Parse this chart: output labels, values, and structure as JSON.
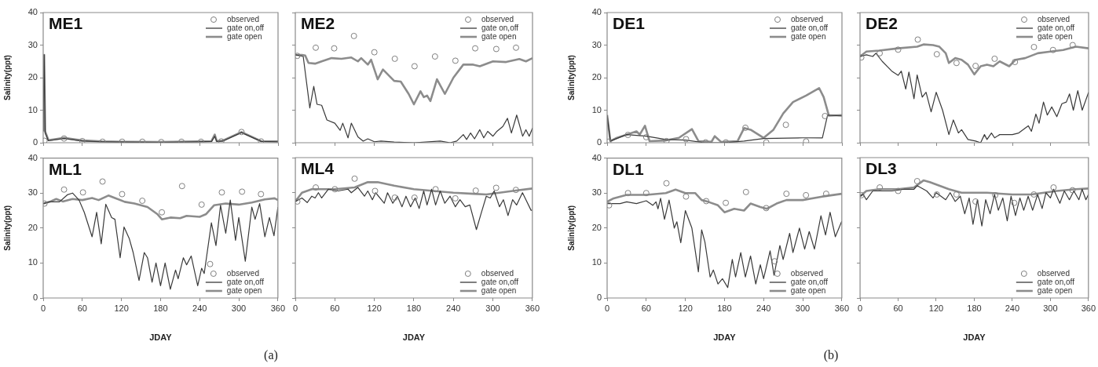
{
  "chart_data": [
    {
      "type": "line",
      "title": "ME1",
      "ylabel": "Salinity(ppt)",
      "xlim": [
        0,
        360
      ],
      "xticks": [
        0,
        60,
        120,
        180,
        240,
        300,
        360
      ],
      "ylim": [
        0,
        40
      ],
      "yticks": [
        0,
        10,
        20,
        30,
        40
      ],
      "tick_labels": "y",
      "legend": "top right",
      "series": [
        {
          "name": "observed",
          "type": "scatter",
          "marker": "circle",
          "color": "#808080",
          "x": [
            2,
            32,
            60,
            91,
            121,
            152,
            181,
            212,
            242,
            273,
            304,
            334
          ],
          "values": [
            0.6,
            1.3,
            0.5,
            0.3,
            0.3,
            0.3,
            0.2,
            0.3,
            0.3,
            0.4,
            3.3,
            0.4
          ]
        },
        {
          "name": "gate on,off",
          "type": "line",
          "marker": "none",
          "color": "#3a3a3a",
          "x": [
            0,
            1.5,
            3,
            8,
            32,
            60,
            90,
            120,
            180,
            240,
            258,
            263,
            266,
            275,
            304,
            334,
            360
          ],
          "values": [
            3.5,
            27,
            3,
            0.6,
            1.3,
            0.5,
            0.3,
            0.2,
            0.1,
            0.3,
            0.4,
            2,
            0.4,
            0.5,
            3.1,
            0.4,
            0.3
          ]
        },
        {
          "name": "gate open",
          "type": "line",
          "marker": "none",
          "color": "#8c8c8c",
          "x": [
            0,
            1.5,
            3,
            8,
            32,
            60,
            90,
            120,
            180,
            240,
            258,
            263,
            266,
            275,
            304,
            334,
            360
          ],
          "values": [
            3.5,
            27,
            3.5,
            0.8,
            1.5,
            0.7,
            0.4,
            0.3,
            0.2,
            0.4,
            0.5,
            2.5,
            0.5,
            0.6,
            3.3,
            0.5,
            0.4
          ]
        }
      ]
    },
    {
      "type": "line",
      "title": "ME2",
      "xlim": [
        0,
        360
      ],
      "xticks": [
        0,
        60,
        120,
        180,
        240,
        300,
        360
      ],
      "ylim": [
        0,
        40
      ],
      "yticks": [
        0,
        10,
        20,
        30,
        40
      ],
      "tick_labels": false,
      "legend": "top right",
      "series": [
        {
          "name": "observed",
          "type": "scatter",
          "marker": "circle",
          "color": "#808080",
          "x": [
            3,
            31,
            59,
            89,
            120,
            151,
            181,
            212,
            243,
            273,
            305,
            335
          ],
          "values": [
            26.7,
            29.2,
            29,
            32.8,
            27.8,
            25.8,
            23.5,
            26.5,
            25.2,
            29,
            28.8,
            29.2
          ]
        },
        {
          "name": "gate on,off",
          "type": "line",
          "marker": "none",
          "color": "#3a3a3a",
          "x": [
            0,
            12,
            22,
            28,
            33,
            40,
            48,
            60,
            68,
            72,
            80,
            85,
            95,
            103,
            110,
            120,
            130,
            150,
            180,
            220,
            235,
            245,
            255,
            260,
            266,
            272,
            280,
            286,
            292,
            300,
            306,
            315,
            322,
            328,
            336,
            345,
            350,
            355,
            360
          ],
          "values": [
            27,
            26.5,
            10.7,
            17.3,
            11.8,
            11.5,
            7,
            6,
            3.8,
            6,
            1.5,
            6,
            1.8,
            0.5,
            1.2,
            0.3,
            0.5,
            0.2,
            0,
            0.5,
            0,
            0.5,
            2.5,
            1,
            3,
            1.2,
            4,
            1.5,
            3.5,
            2,
            3.5,
            5,
            7.5,
            3,
            8.5,
            2,
            4,
            2,
            4.5
          ]
        },
        {
          "name": "gate open",
          "type": "line",
          "marker": "none",
          "color": "#8c8c8c",
          "x": [
            0,
            10,
            15,
            20,
            30,
            40,
            55,
            70,
            85,
            95,
            100,
            110,
            115,
            125,
            133,
            150,
            160,
            172,
            180,
            190,
            195,
            200,
            205,
            215,
            227,
            240,
            255,
            270,
            280,
            300,
            320,
            340,
            350,
            360
          ],
          "values": [
            27,
            27,
            26.8,
            24.5,
            24.3,
            25,
            26,
            25.8,
            26.2,
            25,
            26,
            24,
            25.5,
            19.5,
            22.5,
            19,
            18.8,
            15,
            11.8,
            15.8,
            14,
            14.5,
            12.8,
            19.5,
            15,
            20,
            24,
            24,
            23.5,
            25,
            24.8,
            25.7,
            25,
            26
          ]
        }
      ]
    },
    {
      "type": "line",
      "title": "ML1",
      "xlabel": "JDAY",
      "ylabel": "Salinity(ppt)",
      "xlim": [
        0,
        360
      ],
      "xticks": [
        0,
        60,
        120,
        180,
        240,
        300,
        360
      ],
      "ylim": [
        0,
        40
      ],
      "yticks": [
        0,
        10,
        20,
        30,
        40
      ],
      "legend": "bottom right",
      "annotations": [
        "(a)"
      ],
      "series": [
        {
          "name": "observed",
          "type": "scatter",
          "marker": "circle",
          "color": "#808080",
          "x": [
            2,
            32,
            61,
            91,
            121,
            152,
            182,
            213,
            243,
            256,
            274,
            305,
            334
          ],
          "values": [
            27,
            31,
            30.2,
            33.3,
            29.7,
            27.8,
            24.5,
            32,
            26.7,
            9.7,
            30.2,
            30.4,
            29.7
          ]
        },
        {
          "name": "gate on,off",
          "type": "line",
          "marker": "none",
          "color": "#3a3a3a",
          "x": [
            0,
            10,
            25,
            37,
            45,
            55,
            63,
            75,
            82,
            89,
            96,
            105,
            110,
            118,
            124,
            132,
            138,
            147,
            155,
            160,
            167,
            173,
            180,
            187,
            195,
            203,
            207,
            215,
            220,
            227,
            237,
            243,
            247,
            258,
            265,
            272,
            280,
            287,
            295,
            300,
            310,
            320,
            325,
            332,
            340,
            347,
            354,
            360
          ],
          "values": [
            27,
            27.5,
            27.5,
            29.5,
            30,
            28,
            24.5,
            17.5,
            24.5,
            15.5,
            26.8,
            23,
            22.5,
            11.5,
            20.3,
            17,
            13,
            5,
            13,
            11.5,
            4.5,
            10,
            3.5,
            10,
            2.5,
            8,
            5.5,
            11.5,
            9.5,
            12,
            3.5,
            8.5,
            7,
            21.5,
            15,
            26.5,
            18.5,
            28,
            16.5,
            23,
            10.5,
            26,
            22.5,
            27,
            17.5,
            23,
            17.8,
            26
          ]
        },
        {
          "name": "gate open",
          "type": "line",
          "marker": "none",
          "color": "#8c8c8c",
          "x": [
            0,
            10,
            20,
            30,
            45,
            60,
            75,
            85,
            100,
            110,
            125,
            140,
            160,
            175,
            182,
            195,
            210,
            220,
            240,
            250,
            262,
            280,
            300,
            320,
            340,
            355,
            360
          ],
          "values": [
            27,
            27.5,
            28.3,
            27.6,
            28.3,
            28,
            28.6,
            28,
            29.3,
            28.6,
            27.5,
            27,
            26,
            24,
            22.5,
            23,
            22.8,
            23.5,
            23.2,
            24,
            26.5,
            27,
            26.7,
            27.3,
            28.2,
            28.5,
            28
          ]
        }
      ]
    },
    {
      "type": "line",
      "title": "ML4",
      "xlabel": "JDAY",
      "xlim": [
        0,
        360
      ],
      "xticks": [
        0,
        60,
        120,
        180,
        240,
        300,
        360
      ],
      "ylim": [
        0,
        40
      ],
      "yticks": [
        0,
        10,
        20,
        30,
        40
      ],
      "tick_labels": "x",
      "legend": "bottom right",
      "series": [
        {
          "name": "observed",
          "type": "scatter",
          "marker": "circle",
          "color": "#808080",
          "x": [
            3,
            31,
            60,
            90,
            121,
            151,
            181,
            213,
            243,
            274,
            305,
            335
          ],
          "values": [
            27.5,
            31.5,
            31,
            34,
            30.5,
            28.6,
            28.6,
            31,
            28.4,
            30.6,
            31.4,
            30.8
          ]
        },
        {
          "name": "gate on,off",
          "type": "line",
          "marker": "none",
          "color": "#3a3a3a",
          "x": [
            0,
            10,
            18,
            25,
            30,
            35,
            40,
            50,
            65,
            80,
            85,
            95,
            105,
            110,
            117,
            122,
            135,
            140,
            148,
            155,
            162,
            168,
            175,
            182,
            188,
            195,
            200,
            207,
            213,
            220,
            227,
            235,
            243,
            250,
            258,
            265,
            275,
            282,
            290,
            296,
            302,
            310,
            316,
            323,
            330,
            336,
            345,
            358,
            360
          ],
          "values": [
            27.5,
            28.5,
            27.2,
            29,
            28.5,
            30,
            28.5,
            31,
            30.5,
            31,
            30,
            31.5,
            29,
            30.5,
            28,
            30,
            27,
            30,
            27,
            29,
            26,
            29,
            26,
            28.5,
            25.5,
            30.5,
            26.5,
            31,
            26.5,
            30.5,
            27,
            29,
            26,
            28,
            26,
            26.5,
            19.5,
            24,
            29,
            28.5,
            30.5,
            26,
            28,
            23.5,
            28,
            26.5,
            30,
            25,
            25
          ]
        },
        {
          "name": "gate open",
          "type": "line",
          "marker": "none",
          "color": "#8c8c8c",
          "x": [
            0,
            10,
            25,
            60,
            90,
            110,
            125,
            150,
            180,
            210,
            240,
            270,
            290,
            310,
            330,
            360
          ],
          "values": [
            27.5,
            30,
            31,
            31,
            31.5,
            33,
            33,
            32,
            31,
            30.5,
            30,
            29.7,
            29.5,
            30,
            30.5,
            31.2
          ]
        }
      ]
    },
    {
      "type": "line",
      "title": "DE1",
      "ylabel": "Salinity(ppt)",
      "xlim": [
        0,
        360
      ],
      "xticks": [
        0,
        60,
        120,
        180,
        240,
        300,
        360
      ],
      "ylim": [
        0,
        40
      ],
      "yticks": [
        0,
        10,
        20,
        30,
        40
      ],
      "tick_labels": "y",
      "legend": "top right",
      "series": [
        {
          "name": "observed",
          "type": "scatter",
          "marker": "circle",
          "color": "#808080",
          "x": [
            2,
            32,
            60,
            91,
            121,
            151,
            182,
            212,
            244,
            274,
            305,
            334
          ],
          "values": [
            0.3,
            2.4,
            1.7,
            0.5,
            1.1,
            0.1,
            0.1,
            4.6,
            0.1,
            5.5,
            0.4,
            8.2
          ]
        },
        {
          "name": "gate on,off",
          "type": "line",
          "marker": "none",
          "color": "#3a3a3a",
          "x": [
            0,
            5,
            30,
            60,
            90,
            120,
            150,
            180,
            210,
            240,
            300,
            330,
            338,
            360
          ],
          "values": [
            8.5,
            0.5,
            2.5,
            2,
            1,
            0.8,
            0,
            0,
            0.5,
            1.3,
            1.5,
            1.5,
            8.5,
            8.2
          ]
        },
        {
          "name": "gate open",
          "type": "line",
          "marker": "none",
          "color": "#8c8c8c",
          "x": [
            0,
            5,
            15,
            30,
            45,
            50,
            58,
            65,
            90,
            110,
            130,
            140,
            160,
            165,
            175,
            200,
            210,
            220,
            240,
            255,
            270,
            285,
            305,
            325,
            332,
            340,
            360
          ],
          "values": [
            8.5,
            0.5,
            1.5,
            2.5,
            3.5,
            2.5,
            5.2,
            0.5,
            0.7,
            1.5,
            4.2,
            0.5,
            0.3,
            2,
            0.2,
            0.5,
            4.5,
            4,
            1.5,
            4,
            9,
            12.5,
            14.5,
            16.8,
            14,
            8.3,
            8.5
          ]
        }
      ]
    },
    {
      "type": "line",
      "title": "DE2",
      "xlim": [
        0,
        360
      ],
      "xticks": [
        0,
        60,
        120,
        180,
        240,
        300,
        360
      ],
      "ylim": [
        0,
        40
      ],
      "yticks": [
        0,
        10,
        20,
        30,
        40
      ],
      "tick_labels": false,
      "legend": "top right",
      "series": [
        {
          "name": "observed",
          "type": "scatter",
          "marker": "circle",
          "color": "#808080",
          "x": [
            2,
            31,
            60,
            91,
            121,
            152,
            182,
            212,
            244,
            274,
            304,
            335
          ],
          "values": [
            26.2,
            27.5,
            28.6,
            31.7,
            27.2,
            24.5,
            23.6,
            25.8,
            24.8,
            29.4,
            28.5,
            30
          ]
        },
        {
          "name": "gate on,off",
          "type": "line",
          "marker": "none",
          "color": "#3a3a3a",
          "x": [
            0,
            10,
            20,
            25,
            35,
            50,
            60,
            65,
            72,
            77,
            85,
            90,
            98,
            104,
            112,
            120,
            130,
            140,
            147,
            155,
            160,
            170,
            182,
            190,
            196,
            200,
            207,
            212,
            220,
            240,
            250,
            265,
            270,
            277,
            282,
            289,
            295,
            302,
            310,
            318,
            325,
            330,
            336,
            343,
            350,
            360
          ],
          "values": [
            26.5,
            27,
            26.5,
            27.5,
            25,
            22,
            20.7,
            22,
            16.5,
            21.7,
            13.5,
            20.8,
            14,
            15.5,
            9.5,
            15.5,
            10,
            2.5,
            7,
            3,
            4,
            1,
            0.5,
            0,
            2.5,
            1,
            3,
            1.5,
            2.5,
            2.5,
            3,
            5.2,
            3.5,
            8.8,
            6,
            12.5,
            8.5,
            11,
            8,
            12,
            12.5,
            15,
            10,
            16,
            10,
            15.5
          ]
        },
        {
          "name": "gate open",
          "type": "line",
          "marker": "none",
          "color": "#8c8c8c",
          "x": [
            0,
            10,
            30,
            60,
            90,
            100,
            115,
            125,
            135,
            140,
            150,
            160,
            170,
            180,
            190,
            200,
            210,
            220,
            235,
            245,
            260,
            280,
            300,
            320,
            340,
            360
          ],
          "values": [
            26.5,
            28,
            28.3,
            29,
            29.5,
            30.2,
            30,
            29.5,
            27.5,
            24.5,
            26,
            25.5,
            24,
            21,
            23.5,
            24,
            23.5,
            25,
            23.5,
            25.5,
            26,
            27.5,
            28,
            28.5,
            29.5,
            29
          ]
        }
      ]
    },
    {
      "type": "line",
      "title": "DL1",
      "xlabel": "JDAY",
      "ylabel": "Salinity(ppt)",
      "xlim": [
        0,
        360
      ],
      "xticks": [
        0,
        60,
        120,
        180,
        240,
        300,
        360
      ],
      "ylim": [
        0,
        40
      ],
      "yticks": [
        0,
        10,
        20,
        30,
        40
      ],
      "legend": "bottom right",
      "annotations": [
        "(b)"
      ],
      "series": [
        {
          "name": "observed",
          "type": "scatter",
          "marker": "circle",
          "color": "#808080",
          "x": [
            3,
            32,
            60,
            91,
            121,
            152,
            182,
            213,
            244,
            257,
            275,
            305,
            336
          ],
          "values": [
            26.5,
            30,
            30,
            32.8,
            29,
            27.7,
            27.2,
            30.3,
            25.7,
            10.5,
            29.8,
            29.4,
            29.8
          ]
        },
        {
          "name": "gate on,off",
          "type": "line",
          "marker": "none",
          "color": "#3a3a3a",
          "x": [
            0,
            20,
            30,
            45,
            60,
            70,
            75,
            78,
            82,
            88,
            95,
            103,
            107,
            113,
            120,
            130,
            140,
            145,
            150,
            158,
            163,
            170,
            177,
            185,
            192,
            197,
            205,
            212,
            220,
            228,
            235,
            240,
            250,
            256,
            265,
            270,
            280,
            285,
            295,
            303,
            310,
            318,
            328,
            335,
            342,
            350,
            360
          ],
          "values": [
            27,
            27,
            27.5,
            27,
            27.8,
            26.5,
            27.5,
            25.5,
            28.5,
            22.5,
            28,
            20,
            21.8,
            15.8,
            25,
            20,
            7.5,
            19.5,
            16,
            6,
            8,
            4,
            5.5,
            3,
            11,
            6,
            13,
            6,
            12,
            4,
            9.5,
            5.5,
            13.5,
            6.5,
            15,
            11,
            18.5,
            13,
            20,
            14,
            19,
            14,
            23.5,
            18,
            24.5,
            17.5,
            22
          ]
        },
        {
          "name": "gate open",
          "type": "line",
          "marker": "none",
          "color": "#8c8c8c",
          "x": [
            0,
            10,
            30,
            60,
            90,
            105,
            120,
            135,
            145,
            155,
            170,
            180,
            195,
            210,
            220,
            235,
            245,
            260,
            275,
            300,
            330,
            360
          ],
          "values": [
            27.5,
            28.5,
            29.5,
            29.5,
            30,
            31,
            30,
            30,
            28,
            27.5,
            26.5,
            24.5,
            25.5,
            25,
            27,
            26,
            25.5,
            27,
            28,
            28,
            29,
            29.8
          ]
        }
      ]
    },
    {
      "type": "line",
      "title": "DL3",
      "xlabel": "JDAY",
      "xlim": [
        0,
        360
      ],
      "xticks": [
        0,
        60,
        120,
        180,
        240,
        300,
        360
      ],
      "ylim": [
        0,
        40
      ],
      "yticks": [
        0,
        10,
        20,
        30,
        40
      ],
      "tick_labels": "x",
      "legend": "bottom right",
      "series": [
        {
          "name": "observed",
          "type": "scatter",
          "marker": "circle",
          "color": "#808080",
          "x": [
            2,
            31,
            60,
            90,
            121,
            152,
            182,
            213,
            243,
            274,
            305,
            335
          ],
          "values": [
            29.3,
            31.5,
            30.5,
            33.3,
            29.5,
            29.5,
            27.5,
            29.3,
            27.1,
            29.5,
            31.5,
            30.7
          ]
        },
        {
          "name": "gate on,off",
          "type": "line",
          "marker": "none",
          "color": "#3a3a3a",
          "x": [
            0,
            5,
            10,
            20,
            50,
            70,
            85,
            90,
            105,
            115,
            120,
            135,
            142,
            150,
            158,
            165,
            172,
            178,
            185,
            192,
            198,
            205,
            212,
            218,
            225,
            232,
            238,
            245,
            252,
            258,
            265,
            272,
            280,
            287,
            293,
            300,
            305,
            315,
            322,
            330,
            337,
            345,
            350,
            356,
            360
          ],
          "values": [
            29,
            29.5,
            28,
            30.5,
            30.5,
            31,
            31,
            32,
            30.5,
            28.5,
            30,
            28,
            30,
            27.5,
            29,
            24,
            28.5,
            21,
            28,
            20.5,
            28,
            24,
            29.5,
            25,
            28.5,
            22,
            29,
            23.5,
            28.5,
            25,
            29,
            25,
            29.5,
            25.5,
            30,
            28.5,
            31,
            27,
            30.5,
            28,
            30.5,
            28,
            31,
            28,
            29.5
          ]
        },
        {
          "name": "gate open",
          "type": "line",
          "marker": "none",
          "color": "#8c8c8c",
          "x": [
            0,
            10,
            30,
            60,
            85,
            100,
            110,
            125,
            140,
            160,
            200,
            240,
            270,
            290,
            310,
            340,
            360
          ],
          "values": [
            29,
            30.5,
            31,
            31,
            31.5,
            33.5,
            33,
            32,
            31,
            30,
            30,
            29.5,
            29.5,
            30,
            30.5,
            31,
            31.2
          ]
        }
      ]
    }
  ]
}
